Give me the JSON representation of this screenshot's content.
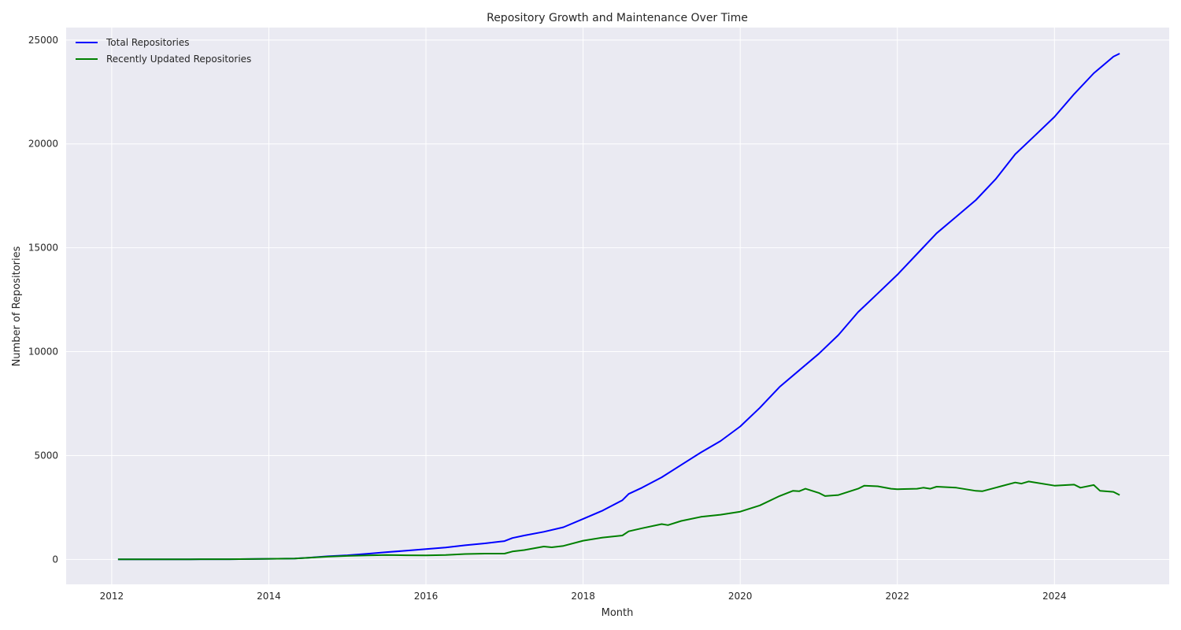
{
  "chart_data": {
    "type": "line",
    "title": "Repository Growth and Maintenance Over Time",
    "xlabel": "Month",
    "ylabel": "Number of Repositories",
    "xlim": [
      2011.42,
      2025.46
    ],
    "ylim": [
      -1200,
      25600
    ],
    "x_ticks": [
      2012,
      2014,
      2016,
      2018,
      2020,
      2022,
      2024
    ],
    "y_ticks": [
      0,
      5000,
      10000,
      15000,
      20000,
      25000
    ],
    "grid": true,
    "legend_position": "top-left",
    "background_color": "#eaeaf2",
    "grid_color": "#ffffff",
    "series": [
      {
        "name": "Total Repositories",
        "color": "#0000ff",
        "points": [
          [
            2012.08,
            0
          ],
          [
            2012.5,
            0
          ],
          [
            2013.0,
            5
          ],
          [
            2013.5,
            10
          ],
          [
            2014.0,
            30
          ],
          [
            2014.33,
            40
          ],
          [
            2014.5,
            80
          ],
          [
            2014.75,
            150
          ],
          [
            2015.0,
            200
          ],
          [
            2015.25,
            270
          ],
          [
            2015.5,
            350
          ],
          [
            2015.75,
            420
          ],
          [
            2016.0,
            500
          ],
          [
            2016.25,
            570
          ],
          [
            2016.5,
            680
          ],
          [
            2016.75,
            770
          ],
          [
            2017.0,
            880
          ],
          [
            2017.1,
            1030
          ],
          [
            2017.25,
            1150
          ],
          [
            2017.5,
            1330
          ],
          [
            2017.75,
            1550
          ],
          [
            2018.0,
            1950
          ],
          [
            2018.25,
            2350
          ],
          [
            2018.5,
            2850
          ],
          [
            2018.58,
            3150
          ],
          [
            2018.75,
            3450
          ],
          [
            2019.0,
            3950
          ],
          [
            2019.25,
            4550
          ],
          [
            2019.5,
            5150
          ],
          [
            2019.75,
            5700
          ],
          [
            2020.0,
            6400
          ],
          [
            2020.25,
            7300
          ],
          [
            2020.5,
            8300
          ],
          [
            2020.75,
            9100
          ],
          [
            2021.0,
            9900
          ],
          [
            2021.25,
            10800
          ],
          [
            2021.5,
            11900
          ],
          [
            2021.75,
            12800
          ],
          [
            2022.0,
            13700
          ],
          [
            2022.25,
            14700
          ],
          [
            2022.5,
            15700
          ],
          [
            2022.75,
            16500
          ],
          [
            2023.0,
            17300
          ],
          [
            2023.25,
            18300
          ],
          [
            2023.5,
            19500
          ],
          [
            2023.75,
            20400
          ],
          [
            2024.0,
            21300
          ],
          [
            2024.25,
            22400
          ],
          [
            2024.5,
            23400
          ],
          [
            2024.75,
            24200
          ],
          [
            2024.83,
            24350
          ]
        ]
      },
      {
        "name": "Recently Updated Repositories",
        "color": "#008000",
        "points": [
          [
            2012.08,
            0
          ],
          [
            2012.5,
            0
          ],
          [
            2013.0,
            5
          ],
          [
            2013.5,
            10
          ],
          [
            2014.0,
            30
          ],
          [
            2014.33,
            40
          ],
          [
            2014.75,
            130
          ],
          [
            2015.0,
            170
          ],
          [
            2015.25,
            190
          ],
          [
            2015.5,
            210
          ],
          [
            2015.75,
            200
          ],
          [
            2016.0,
            190
          ],
          [
            2016.25,
            210
          ],
          [
            2016.5,
            260
          ],
          [
            2016.75,
            280
          ],
          [
            2017.0,
            280
          ],
          [
            2017.1,
            380
          ],
          [
            2017.25,
            450
          ],
          [
            2017.5,
            620
          ],
          [
            2017.6,
            580
          ],
          [
            2017.75,
            650
          ],
          [
            2018.0,
            900
          ],
          [
            2018.25,
            1050
          ],
          [
            2018.5,
            1150
          ],
          [
            2018.58,
            1350
          ],
          [
            2018.75,
            1500
          ],
          [
            2019.0,
            1700
          ],
          [
            2019.08,
            1650
          ],
          [
            2019.25,
            1850
          ],
          [
            2019.5,
            2050
          ],
          [
            2019.75,
            2150
          ],
          [
            2020.0,
            2300
          ],
          [
            2020.25,
            2600
          ],
          [
            2020.5,
            3050
          ],
          [
            2020.67,
            3300
          ],
          [
            2020.75,
            3280
          ],
          [
            2020.83,
            3400
          ],
          [
            2021.0,
            3200
          ],
          [
            2021.08,
            3050
          ],
          [
            2021.25,
            3100
          ],
          [
            2021.5,
            3400
          ],
          [
            2021.58,
            3550
          ],
          [
            2021.75,
            3520
          ],
          [
            2021.92,
            3400
          ],
          [
            2022.0,
            3380
          ],
          [
            2022.25,
            3400
          ],
          [
            2022.33,
            3450
          ],
          [
            2022.42,
            3400
          ],
          [
            2022.5,
            3500
          ],
          [
            2022.75,
            3450
          ],
          [
            2023.0,
            3300
          ],
          [
            2023.08,
            3280
          ],
          [
            2023.25,
            3450
          ],
          [
            2023.5,
            3700
          ],
          [
            2023.58,
            3650
          ],
          [
            2023.67,
            3750
          ],
          [
            2024.0,
            3550
          ],
          [
            2024.25,
            3600
          ],
          [
            2024.33,
            3450
          ],
          [
            2024.5,
            3580
          ],
          [
            2024.58,
            3300
          ],
          [
            2024.75,
            3250
          ],
          [
            2024.83,
            3100
          ]
        ]
      }
    ]
  }
}
